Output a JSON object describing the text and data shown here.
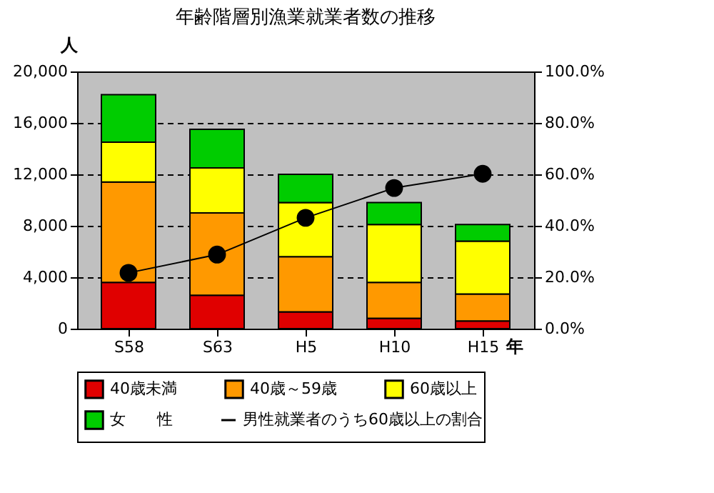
{
  "chart_data": {
    "type": "bar",
    "title": "年齢階層別漁業就業者数の推移",
    "xlabel": "年",
    "ylabel": "人",
    "categories": [
      "S58",
      "S63",
      "H5",
      "H10",
      "H15"
    ],
    "stacked": true,
    "series": [
      {
        "name": "40歳未満",
        "color": "#e00000",
        "values": [
          3600,
          2600,
          1300,
          800,
          600
        ]
      },
      {
        "name": "40歳～59歳",
        "color": "#ff9900",
        "values": [
          7800,
          6400,
          4300,
          2800,
          2100
        ]
      },
      {
        "name": "60歳以上",
        "color": "#ffff00",
        "values": [
          3100,
          3500,
          4200,
          4500,
          4100
        ]
      },
      {
        "name": "女　　性",
        "color": "#00cc00",
        "values": [
          3700,
          3000,
          2200,
          1700,
          1300
        ]
      },
      {
        "name": "男性就業者のうち60歳以上の割合",
        "type": "line",
        "axis": "y2",
        "color": "#000000",
        "marker": "circle",
        "line_style": "solid",
        "values": [
          21.7,
          28.8,
          43.1,
          54.7,
          60.2
        ]
      }
    ],
    "ylim": [
      0,
      20000
    ],
    "yticks": [
      0,
      {
        "value": 4000,
        "label": "4,000"
      },
      {
        "value": 8000,
        "label": "8,000"
      },
      {
        "value": 12000,
        "label": "12,000"
      },
      {
        "value": 16000,
        "label": "16,000"
      },
      {
        "value": 20000,
        "label": "20,000"
      }
    ],
    "y2lim": [
      0,
      100
    ],
    "y2ticks": [
      {
        "value": 0,
        "label": "0.0%"
      },
      {
        "value": 20,
        "label": "20.0%"
      },
      {
        "value": 40,
        "label": "40.0%"
      },
      {
        "value": 60,
        "label": "60.0%"
      },
      {
        "value": 80,
        "label": "80.0%"
      },
      {
        "value": 100,
        "label": "100.0%"
      }
    ],
    "grid": "y",
    "legend": "bottom"
  }
}
